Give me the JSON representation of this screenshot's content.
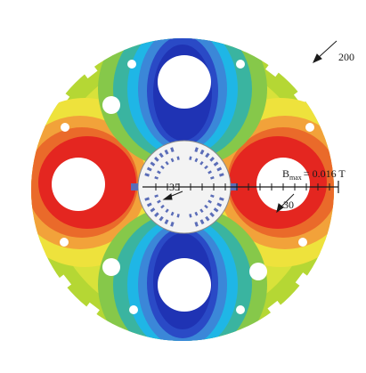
{
  "colors": {
    "outer": "#b5d734",
    "yellow_green": "#d8e23a",
    "yellow": "#eee23c",
    "green": "#86c84a",
    "teal": "#3ab4a0",
    "cyan": "#1fb6e6",
    "light_blue": "#3b87d8",
    "blue": "#2a4ac6",
    "deep_blue": "#1f33b4",
    "orange": "#f2a23a",
    "dark_orange": "#ea6a2a",
    "red": "#e42620",
    "core": "#f3f3f3",
    "coil": "#5b6db8",
    "line": "#1a1a1a"
  },
  "labels": {
    "outer_radius": "200",
    "inner_radius": "35",
    "hole_radius": "30",
    "bmax_prefix": "B",
    "bmax_subscript": "max",
    "bmax_value": "= 0.016 T"
  }
}
